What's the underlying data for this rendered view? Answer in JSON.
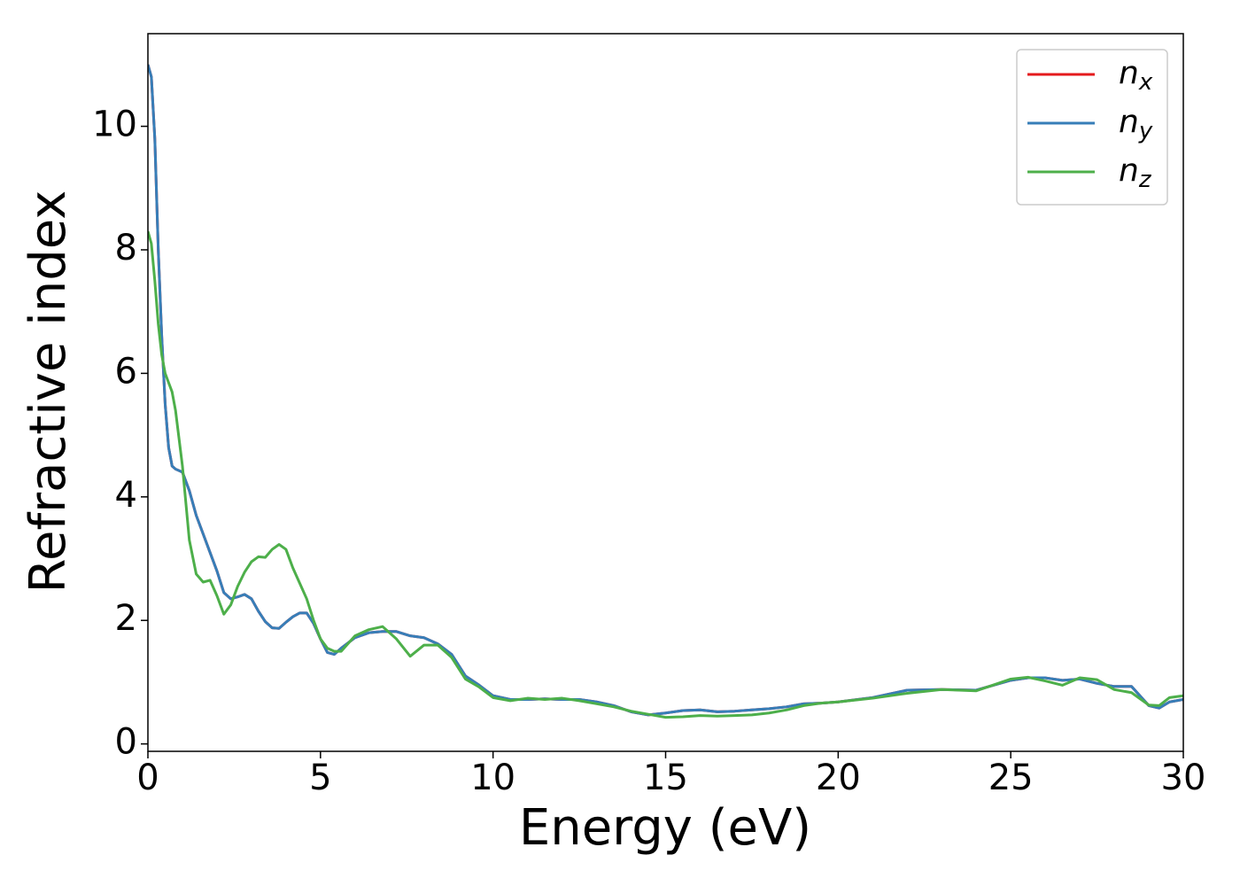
{
  "chart_data": {
    "type": "line",
    "xlabel": "Energy (eV)",
    "ylabel": "Refractive index",
    "x": [
      0,
      0.1,
      0.2,
      0.3,
      0.4,
      0.5,
      0.6,
      0.7,
      0.8,
      1.0,
      1.2,
      1.4,
      1.6,
      1.8,
      2.0,
      2.2,
      2.4,
      2.6,
      2.8,
      3.0,
      3.2,
      3.4,
      3.6,
      3.8,
      4.0,
      4.2,
      4.4,
      4.6,
      4.8,
      5.0,
      5.2,
      5.4,
      5.6,
      6.0,
      6.4,
      6.8,
      7.2,
      7.6,
      8.0,
      8.4,
      8.8,
      9.2,
      9.6,
      10,
      10.5,
      11,
      11.5,
      12,
      12.5,
      13,
      13.5,
      14,
      14.5,
      15,
      15.5,
      16,
      16.5,
      17,
      17.5,
      18,
      18.5,
      19,
      19.5,
      20,
      21,
      22,
      23,
      24,
      25,
      25.5,
      26,
      26.5,
      27,
      27.5,
      28,
      28.5,
      29,
      29.3,
      29.6,
      30
    ],
    "series": [
      {
        "name": "nx",
        "color": "#e41a1c",
        "values": [
          11.0,
          10.8,
          9.8,
          8.0,
          6.6,
          5.5,
          4.8,
          4.5,
          4.45,
          4.4,
          4.1,
          3.7,
          3.4,
          3.1,
          2.8,
          2.45,
          2.35,
          2.38,
          2.42,
          2.35,
          2.15,
          1.98,
          1.88,
          1.87,
          1.97,
          2.06,
          2.12,
          2.12,
          1.95,
          1.7,
          1.48,
          1.45,
          1.55,
          1.72,
          1.8,
          1.82,
          1.82,
          1.75,
          1.72,
          1.62,
          1.45,
          1.1,
          0.95,
          0.78,
          0.72,
          0.72,
          0.73,
          0.72,
          0.72,
          0.68,
          0.62,
          0.52,
          0.47,
          0.5,
          0.54,
          0.55,
          0.52,
          0.53,
          0.55,
          0.57,
          0.6,
          0.65,
          0.66,
          0.68,
          0.75,
          0.87,
          0.88,
          0.87,
          1.03,
          1.07,
          1.07,
          1.03,
          1.05,
          0.98,
          0.93,
          0.93,
          0.62,
          0.58,
          0.68,
          0.72
        ]
      },
      {
        "name": "ny",
        "color": "#377eb8",
        "values": [
          11.0,
          10.8,
          9.8,
          8.0,
          6.6,
          5.5,
          4.8,
          4.5,
          4.45,
          4.4,
          4.1,
          3.7,
          3.4,
          3.1,
          2.8,
          2.45,
          2.35,
          2.38,
          2.42,
          2.35,
          2.15,
          1.98,
          1.88,
          1.87,
          1.97,
          2.06,
          2.12,
          2.12,
          1.95,
          1.7,
          1.48,
          1.45,
          1.55,
          1.72,
          1.8,
          1.82,
          1.82,
          1.75,
          1.72,
          1.62,
          1.45,
          1.1,
          0.95,
          0.78,
          0.72,
          0.72,
          0.73,
          0.72,
          0.72,
          0.68,
          0.62,
          0.52,
          0.47,
          0.5,
          0.54,
          0.55,
          0.52,
          0.53,
          0.55,
          0.57,
          0.6,
          0.65,
          0.66,
          0.68,
          0.75,
          0.87,
          0.88,
          0.87,
          1.03,
          1.07,
          1.07,
          1.03,
          1.05,
          0.98,
          0.93,
          0.93,
          0.62,
          0.58,
          0.68,
          0.72
        ]
      },
      {
        "name": "nz",
        "color": "#4daf4a",
        "values": [
          8.3,
          8.1,
          7.5,
          6.8,
          6.3,
          6.0,
          5.85,
          5.7,
          5.4,
          4.5,
          3.3,
          2.75,
          2.62,
          2.65,
          2.4,
          2.1,
          2.25,
          2.55,
          2.78,
          2.95,
          3.03,
          3.02,
          3.15,
          3.23,
          3.15,
          2.85,
          2.6,
          2.35,
          2.0,
          1.7,
          1.55,
          1.5,
          1.5,
          1.75,
          1.85,
          1.9,
          1.7,
          1.42,
          1.6,
          1.6,
          1.4,
          1.05,
          0.92,
          0.75,
          0.7,
          0.74,
          0.72,
          0.74,
          0.7,
          0.65,
          0.6,
          0.53,
          0.48,
          0.43,
          0.44,
          0.46,
          0.45,
          0.46,
          0.47,
          0.5,
          0.55,
          0.62,
          0.66,
          0.68,
          0.74,
          0.82,
          0.88,
          0.86,
          1.05,
          1.08,
          1.02,
          0.95,
          1.07,
          1.04,
          0.88,
          0.83,
          0.63,
          0.62,
          0.75,
          0.78
        ]
      }
    ],
    "xlim": [
      0,
      30
    ],
    "xticks": [
      0,
      5,
      10,
      15,
      20,
      25,
      30
    ],
    "ylim": [
      -0.12,
      11.5
    ],
    "yticks": [
      0,
      2,
      4,
      6,
      8,
      10
    ],
    "legend": "upper right"
  }
}
